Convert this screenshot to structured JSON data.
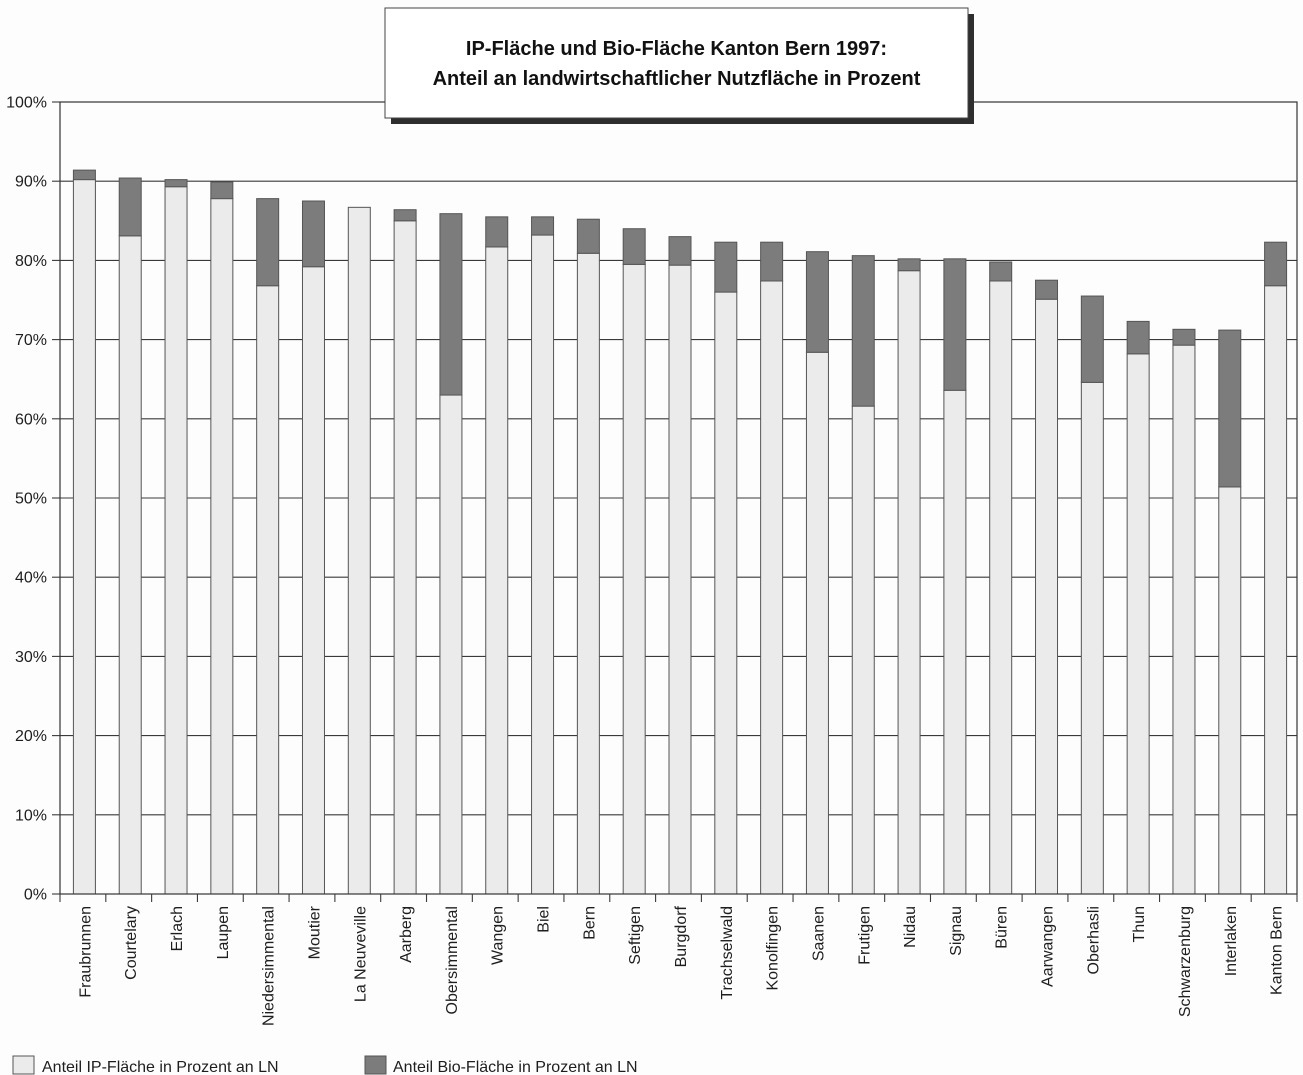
{
  "chart_data": {
    "type": "bar",
    "stacked": true,
    "title": [
      "IP-Fläche und Bio-Fläche Kanton Bern 1997:",
      "Anteil an landwirtschaftlicher Nutzfläche in Prozent"
    ],
    "categories": [
      "Fraubrunnen",
      "Courtelary",
      "Erlach",
      "Laupen",
      "Niedersimmental",
      "Moutier",
      "La Neuveville",
      "Aarberg",
      "Obersimmental",
      "Wangen",
      "Biel",
      "Bern",
      "Seftigen",
      "Burgdorf",
      "Trachselwald",
      "Konolfingen",
      "Saanen",
      "Frutigen",
      "Nidau",
      "Signau",
      "Büren",
      "Aarwangen",
      "Oberhasli",
      "Thun",
      "Schwarzenburg",
      "Interlaken",
      "Kanton Bern"
    ],
    "series": [
      {
        "name": "Anteil IP-Fläche in Prozent an LN",
        "color": "#ebebeb",
        "values": [
          90.2,
          83.1,
          89.3,
          87.8,
          76.8,
          79.2,
          86.7,
          85.0,
          63.0,
          81.7,
          83.2,
          80.9,
          79.5,
          79.4,
          76.0,
          77.4,
          68.4,
          61.6,
          78.7,
          63.6,
          77.4,
          75.1,
          64.6,
          68.2,
          69.3,
          51.4,
          76.8
        ]
      },
      {
        "name": "Anteil Bio-Fläche in Prozent an LN",
        "color": "#7c7c7c",
        "values": [
          1.2,
          7.3,
          0.9,
          2.1,
          11.0,
          8.3,
          0.0,
          1.4,
          22.9,
          3.8,
          2.3,
          4.3,
          4.5,
          3.6,
          6.3,
          4.9,
          12.7,
          19.0,
          1.5,
          16.6,
          2.4,
          2.4,
          10.9,
          4.1,
          2.0,
          19.8,
          5.5
        ]
      }
    ],
    "ylim": [
      0,
      100
    ],
    "yticks": [
      0,
      10,
      20,
      30,
      40,
      50,
      60,
      70,
      80,
      90,
      100
    ],
    "ytick_labels": [
      "0%",
      "10%",
      "20%",
      "30%",
      "40%",
      "50%",
      "60%",
      "70%",
      "80%",
      "90%",
      "100%"
    ],
    "grid": true,
    "legend": "bottom-left"
  }
}
